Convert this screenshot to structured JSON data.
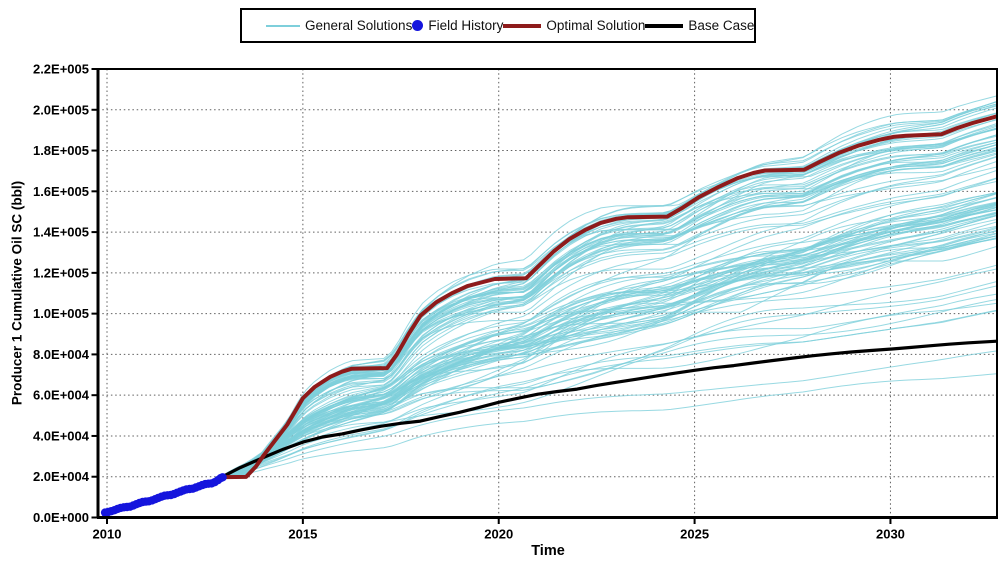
{
  "legend": {
    "items": [
      {
        "label": "General Solutions",
        "swatch": "thin-line",
        "color": "#7ecfdb"
      },
      {
        "label": "Field History",
        "swatch": "dot",
        "color": "#1515dd"
      },
      {
        "label": "Optimal Solution",
        "swatch": "thick-line",
        "color": "#8e1b1b"
      },
      {
        "label": "Base Case",
        "swatch": "thick-line",
        "color": "#000000"
      }
    ]
  },
  "chart_data": {
    "type": "line",
    "title": "",
    "xlabel": "Time",
    "ylabel": "Producer 1 Cumulative Oil SC (bbl)",
    "xlim": [
      2009.77,
      2032.72
    ],
    "ylim": [
      0,
      220000
    ],
    "x_ticks": [
      2010,
      2015,
      2020,
      2025,
      2030
    ],
    "y_ticks": [
      0,
      20000,
      40000,
      60000,
      80000,
      100000,
      120000,
      140000,
      160000,
      180000,
      200000,
      220000
    ],
    "y_tick_labels": [
      "0.0E+000",
      "2.0E+004",
      "4.0E+004",
      "6.0E+004",
      "8.0E+004",
      "1.0E+005",
      "1.2E+005",
      "1.4E+005",
      "1.6E+005",
      "1.8E+005",
      "2.0E+005",
      "2.2E+005"
    ],
    "grid": "dotted",
    "legend_position": "top-center",
    "series": [
      {
        "name": "Field History",
        "type": "scatter",
        "color": "#1515dd",
        "marker_radius": 4.2,
        "points": [
          [
            2009.95,
            2400
          ],
          [
            2010.03,
            2700
          ],
          [
            2010.11,
            3100
          ],
          [
            2010.19,
            3600
          ],
          [
            2010.27,
            4200
          ],
          [
            2010.35,
            4700
          ],
          [
            2010.43,
            5000
          ],
          [
            2010.51,
            5150
          ],
          [
            2010.59,
            5300
          ],
          [
            2010.67,
            5900
          ],
          [
            2010.75,
            6500
          ],
          [
            2010.83,
            7100
          ],
          [
            2010.91,
            7600
          ],
          [
            2010.99,
            7800
          ],
          [
            2011.07,
            7950
          ],
          [
            2011.15,
            8400
          ],
          [
            2011.23,
            9000
          ],
          [
            2011.31,
            9600
          ],
          [
            2011.39,
            10200
          ],
          [
            2011.47,
            10700
          ],
          [
            2011.55,
            10900
          ],
          [
            2011.63,
            11050
          ],
          [
            2011.71,
            11500
          ],
          [
            2011.79,
            12100
          ],
          [
            2011.87,
            12700
          ],
          [
            2011.95,
            13300
          ],
          [
            2012.03,
            13800
          ],
          [
            2012.11,
            14000
          ],
          [
            2012.19,
            14150
          ],
          [
            2012.27,
            14700
          ],
          [
            2012.35,
            15300
          ],
          [
            2012.43,
            15900
          ],
          [
            2012.51,
            16400
          ],
          [
            2012.59,
            16600
          ],
          [
            2012.67,
            16750
          ],
          [
            2012.75,
            17300
          ],
          [
            2012.83,
            18300
          ],
          [
            2012.9,
            19300
          ],
          [
            2012.95,
            19700
          ]
        ]
      },
      {
        "name": "Optimal Solution",
        "type": "line",
        "color": "#8e1b1b",
        "width": 4,
        "points": [
          [
            2012.9,
            19700
          ],
          [
            2013.0,
            19800
          ],
          [
            2013.55,
            19900
          ],
          [
            2013.8,
            25000
          ],
          [
            2014.0,
            30500
          ],
          [
            2014.3,
            38000
          ],
          [
            2014.6,
            45500
          ],
          [
            2015.0,
            58500
          ],
          [
            2015.3,
            64000
          ],
          [
            2015.7,
            69000
          ],
          [
            2016.0,
            71500
          ],
          [
            2016.25,
            73000
          ],
          [
            2017.15,
            73300
          ],
          [
            2017.4,
            80000
          ],
          [
            2017.7,
            90000
          ],
          [
            2018.0,
            99000
          ],
          [
            2018.4,
            105500
          ],
          [
            2018.8,
            110000
          ],
          [
            2019.2,
            113500
          ],
          [
            2019.6,
            115500
          ],
          [
            2019.9,
            117000
          ],
          [
            2020.7,
            117400
          ],
          [
            2021.0,
            123000
          ],
          [
            2021.4,
            130500
          ],
          [
            2021.8,
            136500
          ],
          [
            2022.2,
            141000
          ],
          [
            2022.6,
            144500
          ],
          [
            2023.0,
            146500
          ],
          [
            2023.3,
            147300
          ],
          [
            2024.3,
            147600
          ],
          [
            2024.7,
            152000
          ],
          [
            2025.1,
            157000
          ],
          [
            2025.6,
            162000
          ],
          [
            2026.1,
            166500
          ],
          [
            2026.5,
            169000
          ],
          [
            2026.8,
            170200
          ],
          [
            2027.8,
            170600
          ],
          [
            2028.2,
            174500
          ],
          [
            2028.7,
            179000
          ],
          [
            2029.2,
            182500
          ],
          [
            2029.7,
            185200
          ],
          [
            2030.1,
            186800
          ],
          [
            2030.4,
            187300
          ],
          [
            2031.3,
            188000
          ],
          [
            2031.7,
            191000
          ],
          [
            2032.1,
            193500
          ],
          [
            2032.72,
            196800
          ]
        ]
      },
      {
        "name": "Base Case",
        "type": "line",
        "color": "#000000",
        "width": 3.2,
        "points": [
          [
            2012.9,
            19700
          ],
          [
            2013.0,
            20500
          ],
          [
            2013.2,
            22500
          ],
          [
            2013.4,
            24500
          ],
          [
            2013.7,
            27000
          ],
          [
            2014.0,
            29500
          ],
          [
            2014.5,
            33500
          ],
          [
            2015.0,
            37000
          ],
          [
            2015.5,
            39500
          ],
          [
            2016.0,
            41000
          ],
          [
            2016.5,
            43000
          ],
          [
            2017.0,
            44800
          ],
          [
            2017.5,
            46200
          ],
          [
            2018.0,
            47300
          ],
          [
            2018.5,
            49500
          ],
          [
            2019.0,
            51600
          ],
          [
            2019.5,
            54000
          ],
          [
            2020.0,
            56500
          ],
          [
            2020.5,
            58500
          ],
          [
            2021.0,
            60500
          ],
          [
            2021.5,
            61800
          ],
          [
            2022.0,
            63000
          ],
          [
            2022.5,
            64800
          ],
          [
            2023.0,
            66300
          ],
          [
            2023.5,
            67800
          ],
          [
            2024.0,
            69300
          ],
          [
            2024.5,
            70800
          ],
          [
            2025.0,
            72200
          ],
          [
            2025.5,
            73500
          ],
          [
            2026.0,
            74500
          ],
          [
            2026.5,
            75800
          ],
          [
            2027.0,
            77000
          ],
          [
            2027.5,
            78200
          ],
          [
            2028.0,
            79300
          ],
          [
            2028.5,
            80300
          ],
          [
            2029.0,
            81200
          ],
          [
            2029.5,
            81900
          ],
          [
            2030.0,
            82600
          ],
          [
            2030.5,
            83400
          ],
          [
            2031.0,
            84200
          ],
          [
            2031.5,
            85000
          ],
          [
            2032.0,
            85700
          ],
          [
            2032.72,
            86500
          ]
        ]
      },
      {
        "name": "General Solutions",
        "type": "ensemble",
        "color": "#7ecfdb",
        "width": 1,
        "opacity": 0.8,
        "seed": 42,
        "start": [
          2012.9,
          19700
        ],
        "end_year": 2032.72,
        "groups": [
          {
            "count": 40,
            "end": [
              178000,
              207000
            ],
            "w": [
              0.78,
              1.0
            ],
            "amp": [
              0.008,
              0.03
            ]
          },
          {
            "count": 8,
            "end": [
              160000,
              178000
            ],
            "w": [
              0.45,
              0.8
            ],
            "amp": [
              0.02,
              0.05
            ]
          },
          {
            "count": 46,
            "end": [
              136000,
              160000
            ],
            "w": [
              0.22,
              0.55
            ],
            "amp": [
              0.02,
              0.06
            ]
          },
          {
            "count": 12,
            "end": [
              70000,
              134000
            ],
            "w": [
              0.12,
              0.5
            ],
            "amp": [
              0.03,
              0.08
            ]
          }
        ]
      }
    ]
  }
}
